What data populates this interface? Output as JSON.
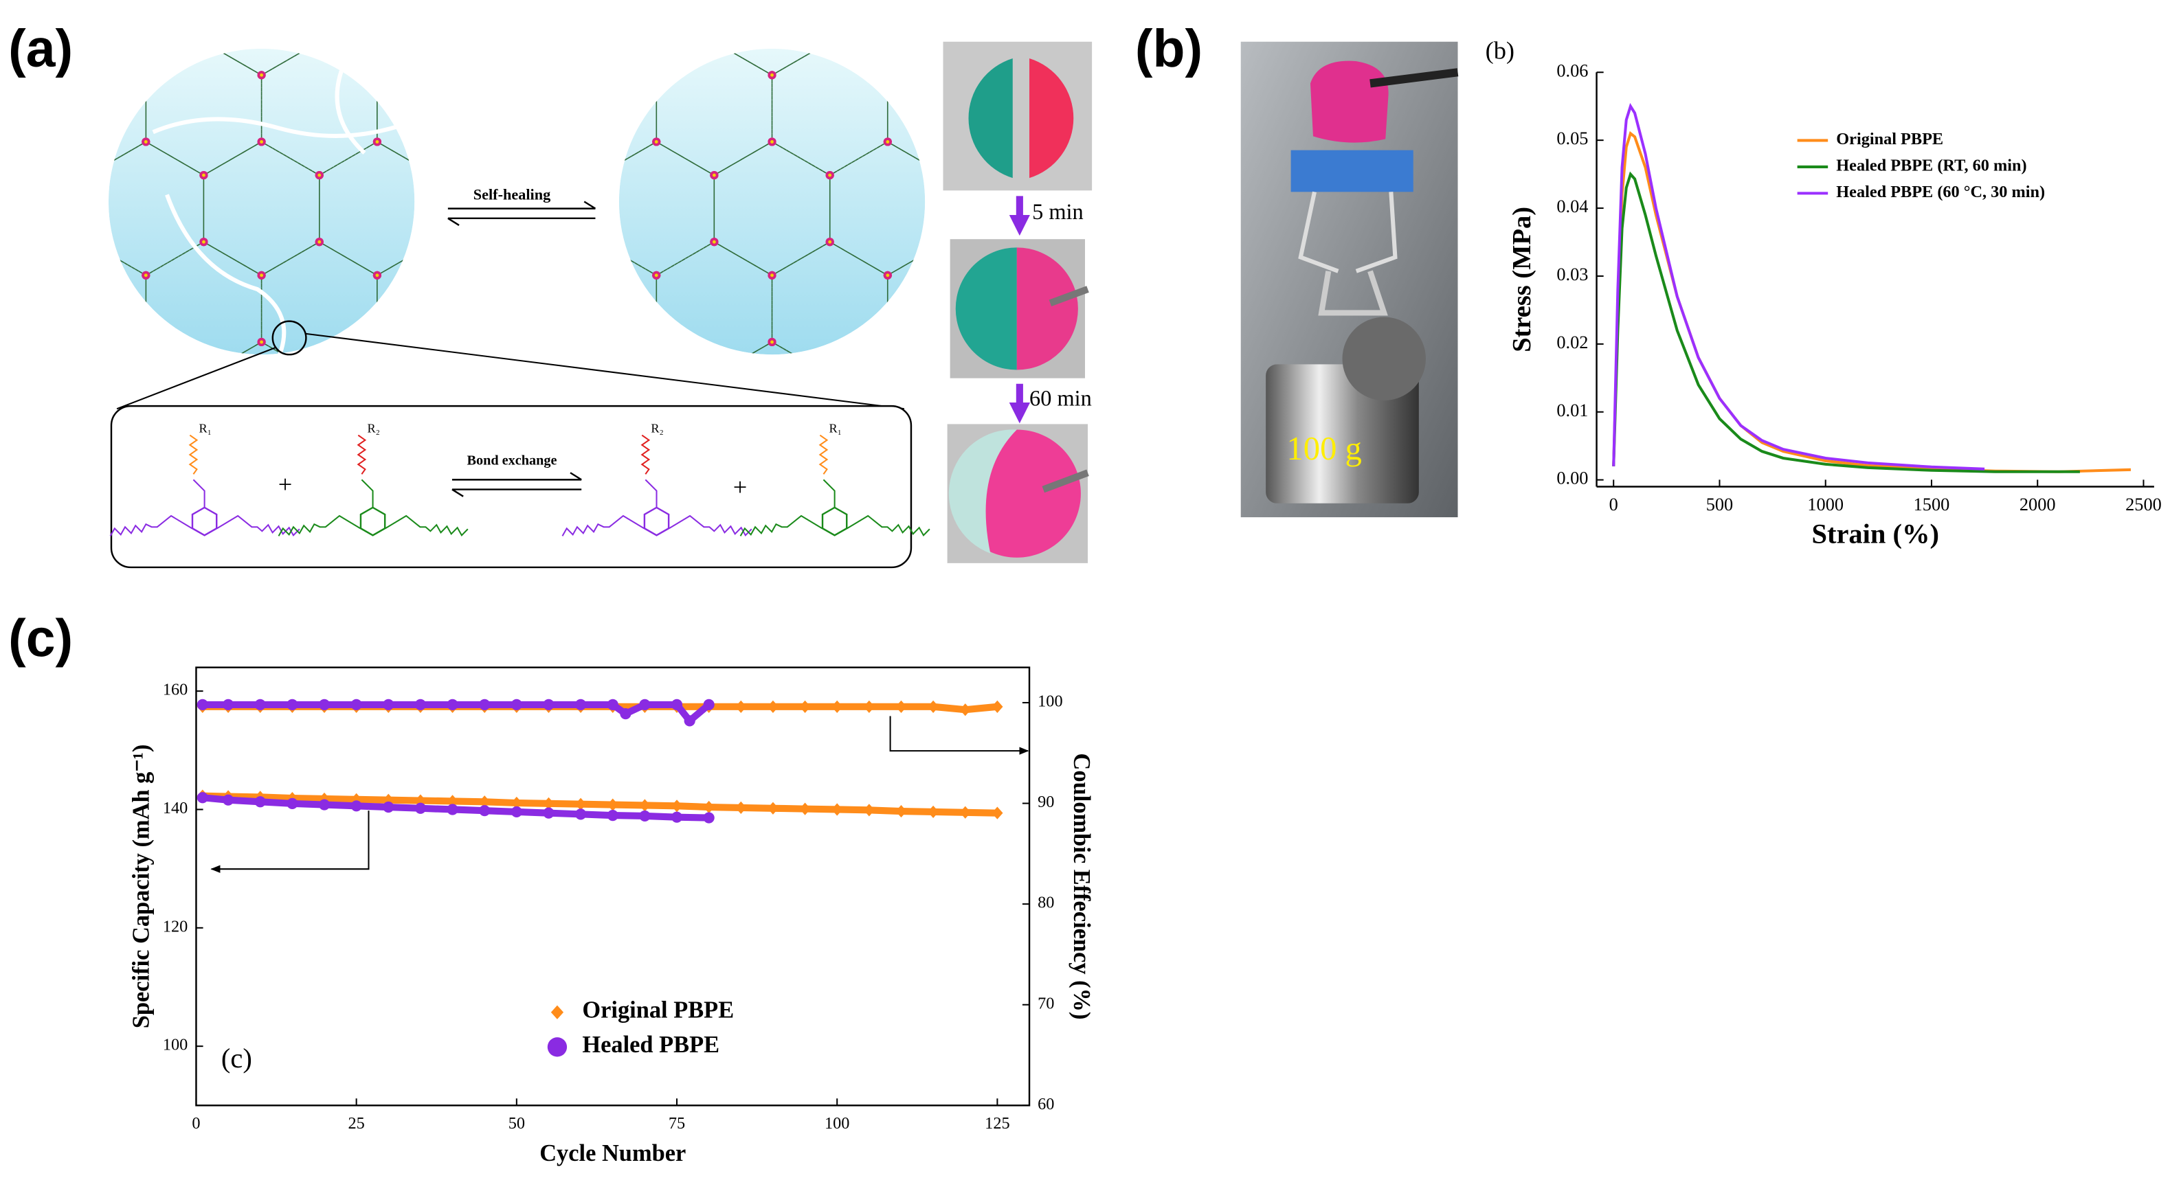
{
  "panels": {
    "a": "(a)",
    "b": "(b)",
    "c": "(c)"
  },
  "diagram": {
    "self_healing": "Self-healing",
    "bond_exchange": "Bond exchange",
    "r_labels": [
      "R₁",
      "R₂",
      "R₂",
      "R₁"
    ],
    "plus": [
      "+",
      "+"
    ],
    "times": [
      "5 min",
      "60 min"
    ]
  },
  "photo": {
    "weight": "100 g"
  },
  "chart_data": [
    {
      "type": "line",
      "label": "(b)",
      "xlabel": "Strain (%)",
      "ylabel": "Stress (MPa)",
      "xlim": [
        -80,
        2550
      ],
      "ylim": [
        -0.001,
        0.06
      ],
      "xticks": [
        0,
        500,
        1000,
        1500,
        2000,
        2500
      ],
      "yticks": [
        {
          "value": 0,
          "label": "0.00"
        },
        {
          "value": 0.01,
          "label": "0.01"
        },
        {
          "value": 0.02,
          "label": "0.02"
        },
        {
          "value": 0.03,
          "label": "0.03"
        },
        {
          "value": 0.04,
          "label": "0.04"
        },
        {
          "value": 0.05,
          "label": "0.05"
        },
        {
          "value": 0.06,
          "label": "0.06"
        }
      ],
      "legend": "upper right",
      "series": [
        {
          "name": "Original PBPE",
          "color": "#ff8c1a",
          "x": [
            0,
            20,
            40,
            60,
            80,
            100,
            150,
            200,
            300,
            400,
            500,
            600,
            700,
            800,
            1000,
            1200,
            1500,
            1800,
            2100,
            2440
          ],
          "values": [
            0.002,
            0.025,
            0.042,
            0.049,
            0.051,
            0.0505,
            0.046,
            0.039,
            0.027,
            0.018,
            0.012,
            0.008,
            0.0055,
            0.0042,
            0.0028,
            0.0021,
            0.0016,
            0.0013,
            0.0012,
            0.0015
          ]
        },
        {
          "name": "Healed PBPE (RT, 60 min)",
          "color": "#1a8a1a",
          "x": [
            0,
            20,
            40,
            60,
            80,
            100,
            150,
            200,
            300,
            400,
            500,
            600,
            700,
            800,
            1000,
            1200,
            1500,
            1800,
            2200
          ],
          "values": [
            0.002,
            0.022,
            0.037,
            0.043,
            0.045,
            0.0443,
            0.039,
            0.033,
            0.022,
            0.014,
            0.009,
            0.006,
            0.0042,
            0.0032,
            0.0023,
            0.0018,
            0.0014,
            0.0012,
            0.0012
          ]
        },
        {
          "name": "Healed PBPE (60 °C, 30 min)",
          "color": "#9b30ff",
          "x": [
            0,
            20,
            40,
            60,
            80,
            100,
            150,
            200,
            300,
            400,
            500,
            600,
            700,
            800,
            1000,
            1200,
            1500,
            1750
          ],
          "values": [
            0.002,
            0.028,
            0.046,
            0.053,
            0.055,
            0.054,
            0.048,
            0.04,
            0.027,
            0.018,
            0.012,
            0.008,
            0.0058,
            0.0045,
            0.0032,
            0.0025,
            0.0019,
            0.0016
          ]
        }
      ]
    },
    {
      "type": "scatter",
      "label": "(c)",
      "xlabel": "Cycle Number",
      "ylabel": "Specific Capacity (mAh g⁻¹)",
      "y2label": "Coulombic Effeciency (%)",
      "xlim": [
        0,
        130
      ],
      "ylim": [
        90,
        164
      ],
      "y2lim": [
        60,
        103.5
      ],
      "xticks": [
        0,
        25,
        50,
        75,
        100,
        125
      ],
      "yticks": [
        100,
        120,
        140,
        160
      ],
      "y2ticks": [
        60,
        70,
        80,
        90,
        100
      ],
      "legend": "lower center",
      "series": [
        {
          "name": "Original PBPE",
          "color": "#ff8c1a",
          "marker": "diamond",
          "x": [
            1,
            5,
            10,
            15,
            20,
            25,
            30,
            35,
            40,
            45,
            50,
            55,
            60,
            65,
            70,
            75,
            80,
            85,
            90,
            95,
            100,
            105,
            110,
            115,
            120,
            125
          ],
          "values": [
            142.3,
            142.2,
            142.1,
            141.9,
            141.8,
            141.7,
            141.6,
            141.5,
            141.4,
            141.3,
            141.1,
            141.0,
            140.9,
            140.8,
            140.7,
            140.6,
            140.4,
            140.3,
            140.2,
            140.1,
            140.0,
            139.9,
            139.7,
            139.6,
            139.5,
            139.4
          ]
        },
        {
          "name": "Healed PBPE",
          "color": "#8a2be2",
          "marker": "circle",
          "x": [
            1,
            5,
            10,
            15,
            20,
            25,
            30,
            35,
            40,
            45,
            50,
            55,
            60,
            65,
            70,
            75,
            80
          ],
          "values": [
            142.0,
            141.6,
            141.3,
            141.0,
            140.8,
            140.6,
            140.4,
            140.2,
            140.0,
            139.8,
            139.6,
            139.4,
            139.2,
            139.0,
            138.9,
            138.7,
            138.6
          ]
        },
        {
          "color": "#ff8c1a",
          "marker": "diamond",
          "axis": "y2",
          "x": [
            1,
            5,
            10,
            15,
            20,
            25,
            30,
            35,
            40,
            45,
            50,
            55,
            60,
            65,
            70,
            75,
            80,
            85,
            90,
            95,
            100,
            105,
            110,
            115,
            120,
            125
          ],
          "values": [
            99.6,
            99.6,
            99.6,
            99.6,
            99.6,
            99.6,
            99.6,
            99.6,
            99.6,
            99.6,
            99.6,
            99.6,
            99.6,
            99.6,
            99.6,
            99.6,
            99.6,
            99.6,
            99.6,
            99.6,
            99.6,
            99.6,
            99.6,
            99.6,
            99.3,
            99.6
          ]
        },
        {
          "color": "#8a2be2",
          "marker": "circle",
          "axis": "y2",
          "x": [
            1,
            5,
            10,
            15,
            20,
            25,
            30,
            35,
            40,
            45,
            50,
            55,
            60,
            65,
            67,
            70,
            75,
            77,
            80
          ],
          "values": [
            99.8,
            99.8,
            99.8,
            99.8,
            99.8,
            99.8,
            99.8,
            99.8,
            99.8,
            99.8,
            99.8,
            99.8,
            99.8,
            99.8,
            98.9,
            99.8,
            99.8,
            98.2,
            99.8
          ]
        }
      ]
    }
  ]
}
